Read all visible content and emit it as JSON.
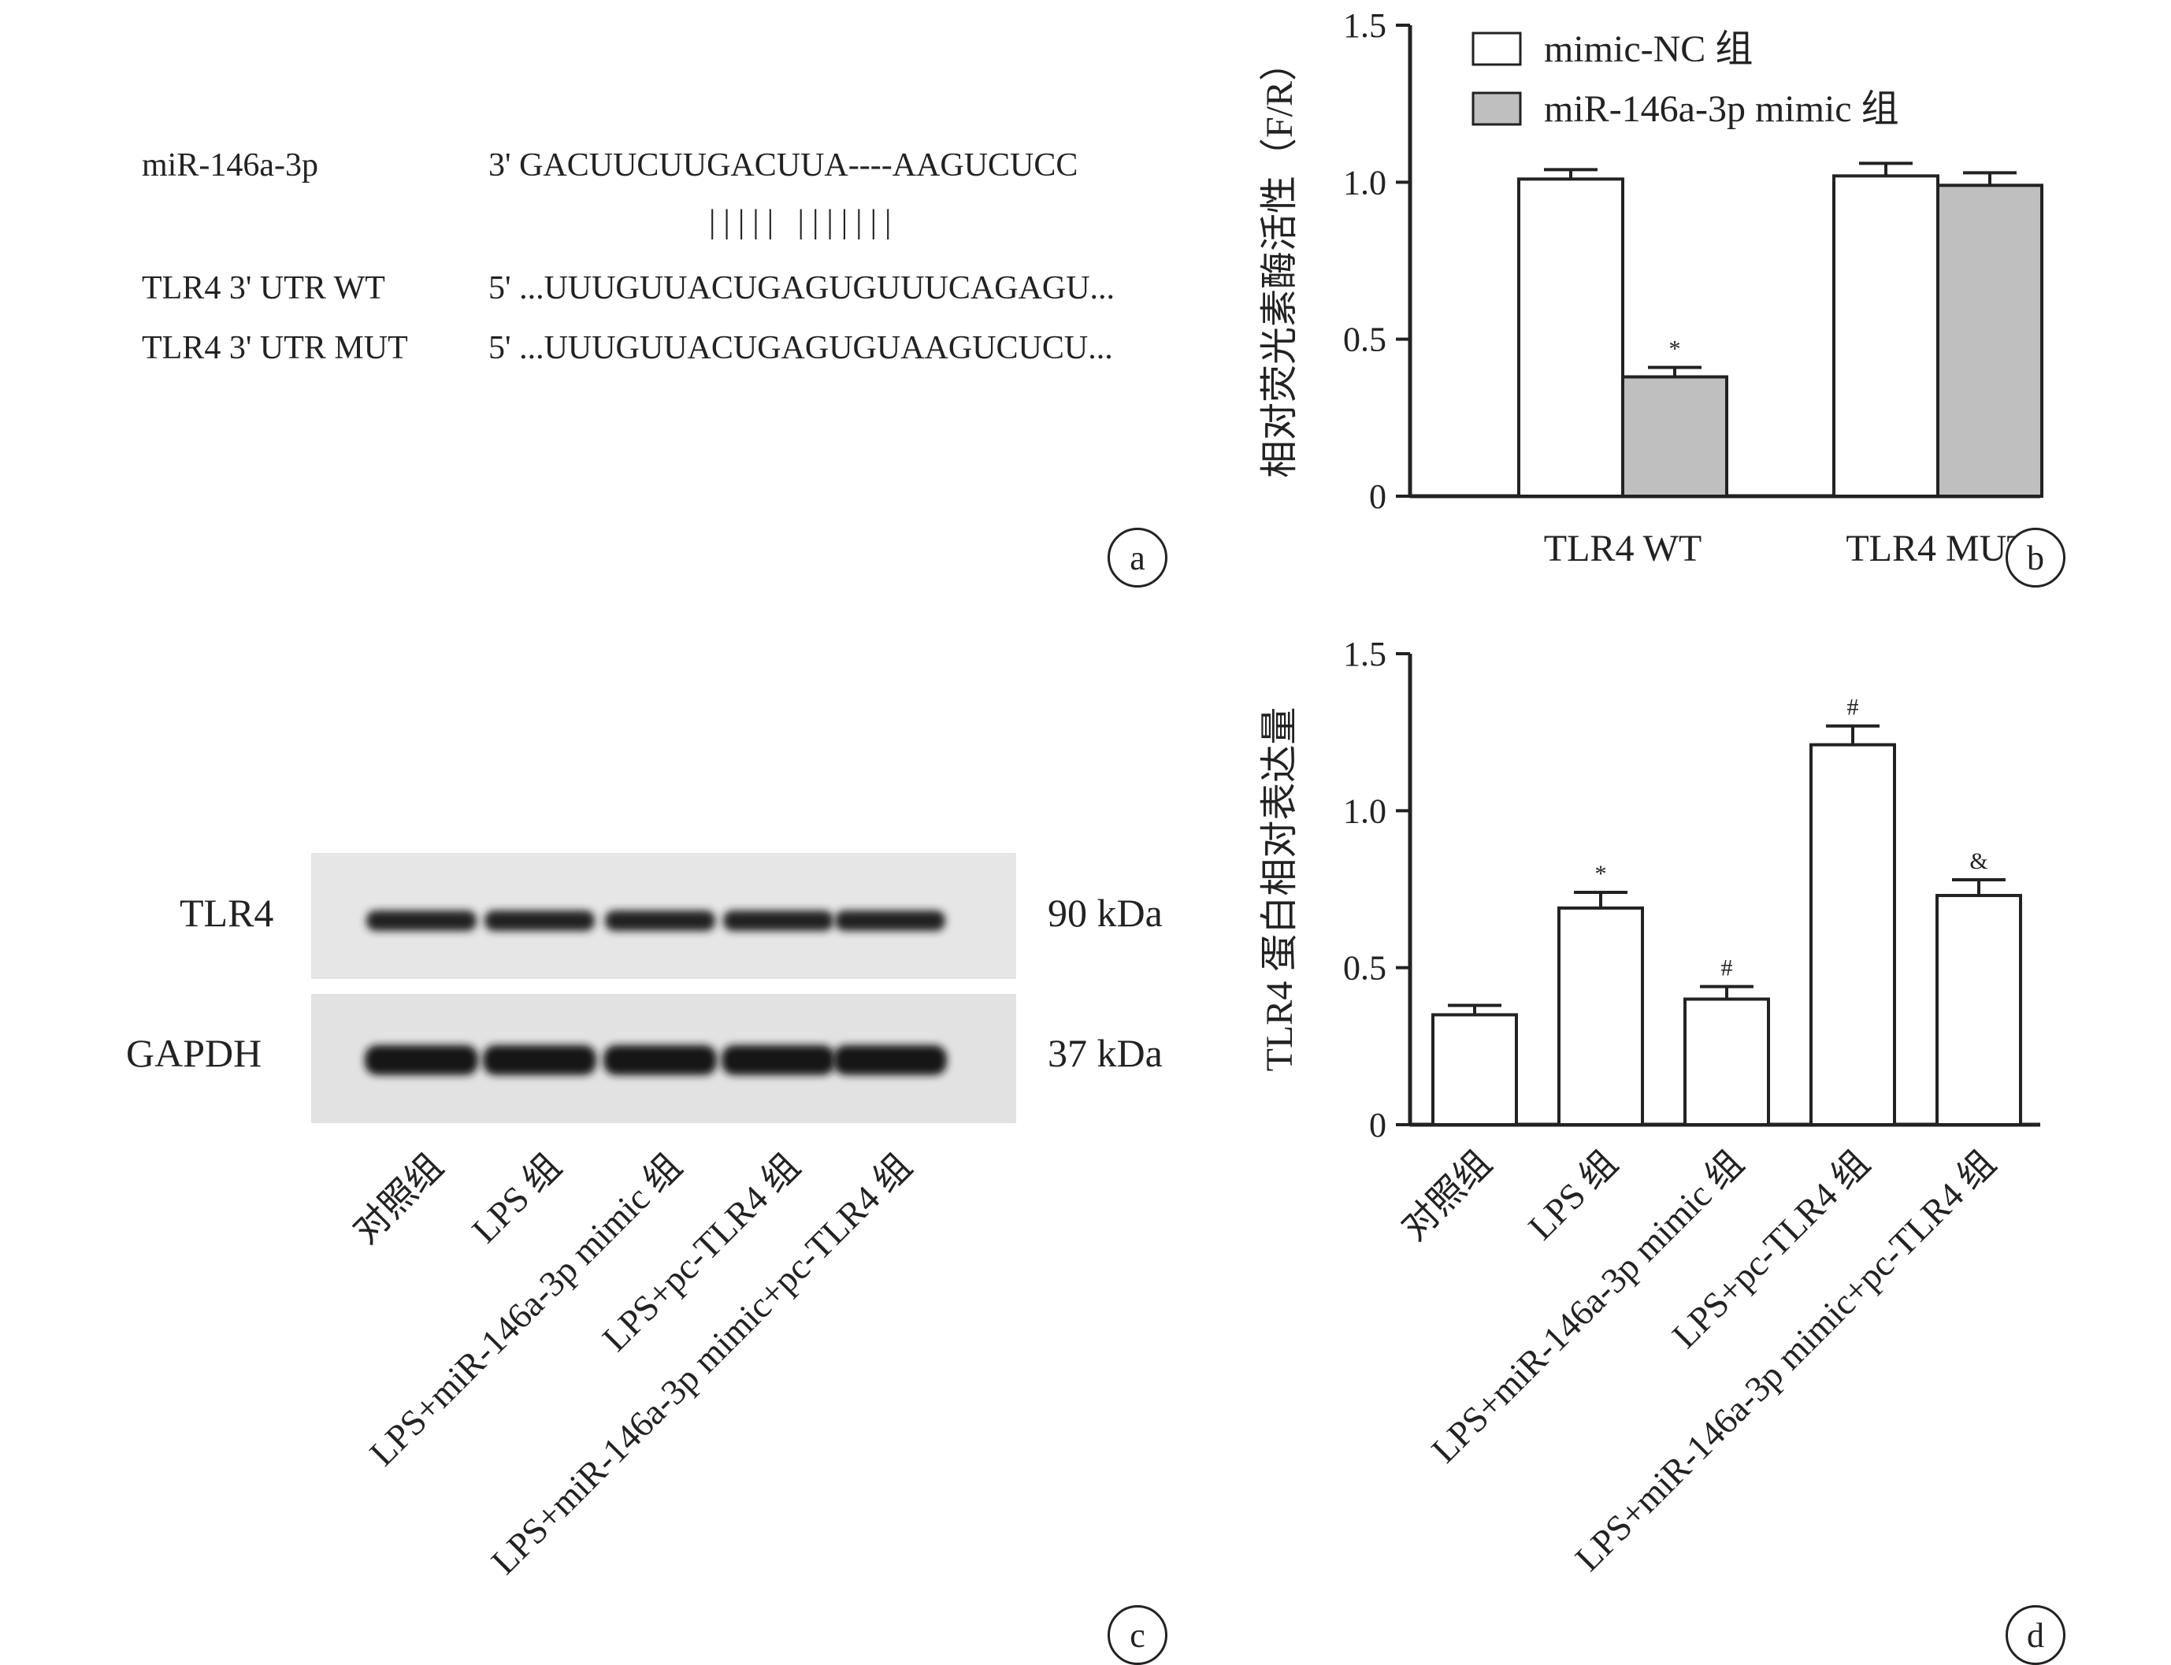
{
  "panel_a": {
    "label": "a",
    "rows": [
      {
        "name": "miR-146a-3p",
        "seq": "3' GACUUCUUGACUUA----AAGUCUCC"
      },
      {
        "name": "TLR4 3' UTR WT",
        "seq": "5' ...UUUGUUACUGAGUGUUUCAGAGU..."
      },
      {
        "name": "TLR4 3' UTR MUT",
        "seq": "5' ...UUUGUUACUGAGUGUAAGUCUCU..."
      }
    ],
    "pairing": "|||||        |||||||"
  },
  "panel_b_label": "b",
  "panel_c": {
    "label": "c",
    "proteins": [
      {
        "name": "TLR4",
        "size": "90 kDa"
      },
      {
        "name": "GAPDH",
        "size": "37 kDa"
      }
    ],
    "lanes": [
      "对照组",
      "LPS 组",
      "LPS+miR-146a-3p mimic 组",
      "LPS+pc-TLR4 组",
      "LPS+miR-146a-3p mimic+pc-TLR4 组"
    ]
  },
  "panel_d_label": "d",
  "chart_data": [
    {
      "type": "bar",
      "categories": [
        "TLR4 WT",
        "TLR4 MUT"
      ],
      "series": [
        {
          "name": "mimic-NC 组",
          "values": [
            1.01,
            1.02
          ],
          "errors": [
            0.03,
            0.04
          ],
          "color": "#ffffff",
          "marks": [
            "",
            ""
          ]
        },
        {
          "name": "miR-146a-3p mimic 组",
          "values": [
            0.38,
            0.99
          ],
          "errors": [
            0.03,
            0.04
          ],
          "color": "#bfbfbf",
          "marks": [
            "*",
            ""
          ]
        }
      ],
      "ylabel": "相对荧光素酶活性（F/R）",
      "ylim": [
        0,
        1.5
      ],
      "yticks": [
        "0",
        "0.5",
        "1.0",
        "1.5"
      ],
      "legend": "top-left"
    },
    {
      "type": "bar",
      "categories": [
        "对照组",
        "LPS 组",
        "LPS+miR-146a-3p mimic 组",
        "LPS+pc-TLR4 组",
        "LPS+miR-146a-3p mimic+pc-TLR4 组"
      ],
      "series": [
        {
          "values": [
            0.35,
            0.69,
            0.4,
            1.21,
            0.73
          ],
          "errors": [
            0.03,
            0.05,
            0.04,
            0.06,
            0.05
          ],
          "color": "#ffffff",
          "marks": [
            "",
            "*",
            "#",
            "#",
            "&"
          ]
        }
      ],
      "ylabel": "TLR4 蛋白相对表达量",
      "ylim": [
        0,
        1.5
      ],
      "yticks": [
        "0",
        "0.5",
        "1.0",
        "1.5"
      ]
    }
  ]
}
